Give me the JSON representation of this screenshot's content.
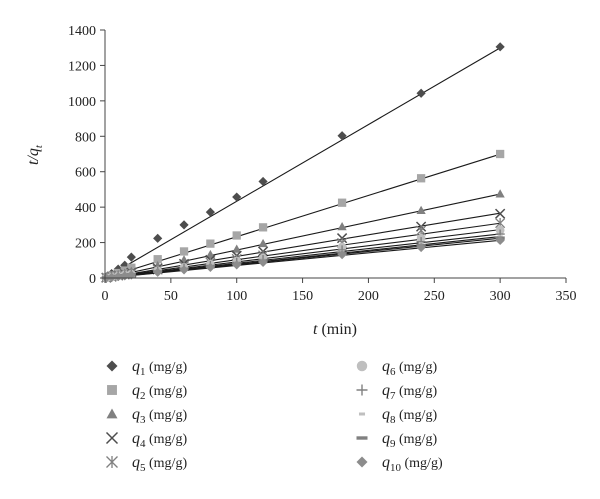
{
  "chart_data": {
    "type": "scatter",
    "xlabel": "t (min)",
    "ylabel": "t/qt",
    "xlim": [
      0,
      350
    ],
    "ylim": [
      0,
      1400
    ],
    "xticks": [
      0,
      50,
      100,
      150,
      200,
      250,
      300,
      350
    ],
    "yticks": [
      0,
      200,
      400,
      600,
      800,
      1000,
      1200,
      1400
    ],
    "grid": false,
    "legend_position": "bottom",
    "x": [
      1,
      5,
      10,
      15,
      20,
      40,
      60,
      80,
      100,
      120,
      180,
      240,
      300
    ],
    "series": [
      {
        "name": "q1 (mg/g)",
        "sub": "1",
        "marker": "diamond",
        "color": "#4d4d4d",
        "slope": 4.33,
        "values": [
          5,
          25,
          50,
          72,
          118,
          224,
          300,
          372,
          457,
          545,
          803,
          1043,
          1305
        ]
      },
      {
        "name": "q2 (mg/g)",
        "sub": "2",
        "marker": "square",
        "color": "#a6a6a6",
        "slope": 2.33,
        "values": [
          3,
          14,
          28,
          42,
          58,
          106,
          150,
          194,
          240,
          286,
          425,
          563,
          700
        ]
      },
      {
        "name": "q3 (mg/g)",
        "sub": "3",
        "marker": "triangle",
        "color": "#808080",
        "slope": 1.58,
        "values": [
          2,
          10,
          19,
          28,
          38,
          70,
          103,
          133,
          163,
          195,
          290,
          382,
          475
        ]
      },
      {
        "name": "q4 (mg/g)",
        "sub": "4",
        "marker": "x",
        "color": "#4d4d4d",
        "slope": 1.22,
        "values": [
          2,
          8,
          15,
          22,
          30,
          55,
          80,
          102,
          126,
          150,
          225,
          290,
          363
        ]
      },
      {
        "name": "q5 (mg/g)",
        "sub": "5",
        "marker": "star",
        "color": "#808080",
        "slope": 1.03,
        "values": [
          1,
          7,
          13,
          19,
          25,
          47,
          68,
          88,
          108,
          128,
          198,
          268,
          310
        ]
      },
      {
        "name": "q6 (mg/g)",
        "sub": "6",
        "marker": "circle",
        "color": "#bfbfbf",
        "slope": 0.91,
        "values": [
          1,
          6,
          11,
          17,
          22,
          42,
          60,
          78,
          96,
          113,
          175,
          225,
          270
        ]
      },
      {
        "name": "q7 (mg/g)",
        "sub": "7",
        "marker": "plus",
        "color": "#808080",
        "slope": 0.83,
        "values": [
          1,
          5,
          10,
          15,
          20,
          38,
          55,
          71,
          88,
          104,
          158,
          205,
          248
        ]
      },
      {
        "name": "q8 (mg/g)",
        "sub": "8",
        "marker": "dash-short",
        "color": "#bfbfbf",
        "slope": 0.78,
        "values": [
          1,
          5,
          9,
          14,
          19,
          35,
          51,
          67,
          82,
          98,
          148,
          193,
          233
        ]
      },
      {
        "name": "q9 (mg/g)",
        "sub": "9",
        "marker": "dash-long",
        "color": "#808080",
        "slope": 0.75,
        "values": [
          1,
          5,
          9,
          13,
          18,
          34,
          49,
          64,
          79,
          94,
          140,
          183,
          225
        ]
      },
      {
        "name": "q10 (mg/g)",
        "sub": "10",
        "marker": "diamond",
        "color": "#8c8c8c",
        "slope": 0.71,
        "values": [
          1,
          4,
          8,
          12,
          17,
          32,
          46,
          60,
          74,
          88,
          132,
          172,
          212
        ]
      }
    ]
  }
}
